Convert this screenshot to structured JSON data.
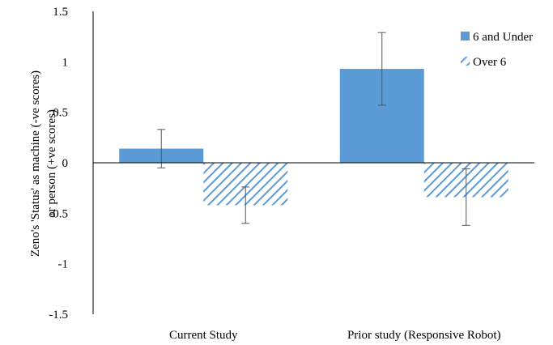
{
  "chart_data": {
    "type": "bar",
    "title": "",
    "xlabel": "",
    "ylabel_line1": "Zeno's 'Status' as machine  (-ve scores)",
    "ylabel_line2": "or person (+ve scores)",
    "categories": [
      "Current Study",
      "Prior study (Responsive Robot)"
    ],
    "series": [
      {
        "name": "6 and Under",
        "values": [
          0.14,
          0.93
        ],
        "error": [
          0.19,
          0.36
        ],
        "color": "#5b9bd5",
        "fill": "solid"
      },
      {
        "name": "Over 6",
        "values": [
          -0.42,
          -0.34
        ],
        "error": [
          0.18,
          0.28
        ],
        "color": "#5b9bd5",
        "fill": "hatched"
      }
    ],
    "ylim": [
      -1.5,
      1.5
    ],
    "yticks": [
      "1.5",
      "1",
      "0.5",
      "0",
      "-0.5",
      "-1",
      "-1.5"
    ],
    "ytick_values": [
      1.5,
      1,
      0.5,
      0,
      -0.5,
      -1,
      -1.5
    ],
    "grid": false,
    "legend_position": "top-right"
  }
}
